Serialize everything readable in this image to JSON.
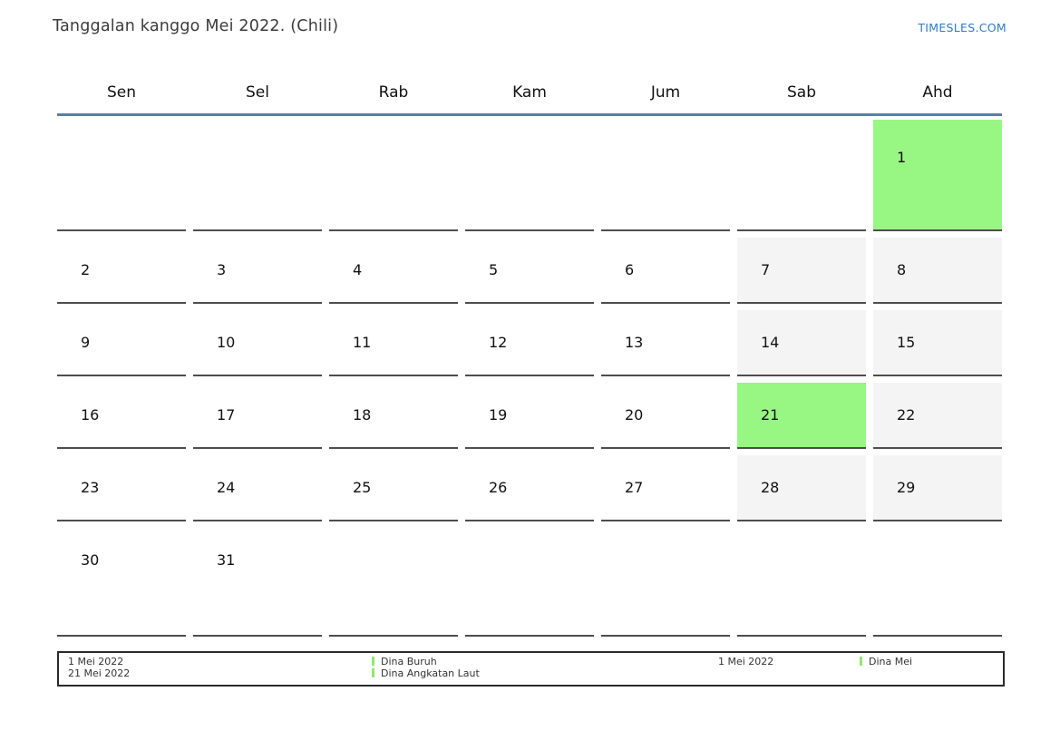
{
  "header": {
    "title": "Tanggalan kanggo Mei 2022. (Chili)",
    "site_link": "TIMESLES.COM"
  },
  "calendar": {
    "day_headers": [
      "Sen",
      "Sel",
      "Rab",
      "Kam",
      "Jum",
      "Sab",
      "Ahd"
    ],
    "weeks": [
      [
        "",
        "",
        "",
        "",
        "",
        "",
        "1"
      ],
      [
        "2",
        "3",
        "4",
        "5",
        "6",
        "7",
        "8"
      ],
      [
        "9",
        "10",
        "11",
        "12",
        "13",
        "14",
        "15"
      ],
      [
        "16",
        "17",
        "18",
        "19",
        "20",
        "21",
        "22"
      ],
      [
        "23",
        "24",
        "25",
        "26",
        "27",
        "28",
        "29"
      ],
      [
        "30",
        "31",
        "",
        "",
        "",
        "",
        ""
      ]
    ],
    "highlighted_days": [
      "1",
      "21"
    ],
    "weekend_columns": [
      5,
      6
    ],
    "colors": {
      "holiday_bg": "#98f783",
      "weekend_bg": "#f4f4f4",
      "header_rule": "#5b80a5",
      "cell_border": "#4d4d4d",
      "link_blue": "#2e7cc3",
      "legend_marker": "#8ee96d"
    }
  },
  "legend": {
    "groups": [
      {
        "dates": [
          "1 Mei 2022",
          "21 Mei 2022"
        ],
        "holidays": [
          "Dina Buruh",
          "Dina Angkatan Laut"
        ]
      },
      {
        "dates": [
          "1 Mei 2022"
        ],
        "holidays": [
          "Dina Mei"
        ]
      }
    ]
  }
}
